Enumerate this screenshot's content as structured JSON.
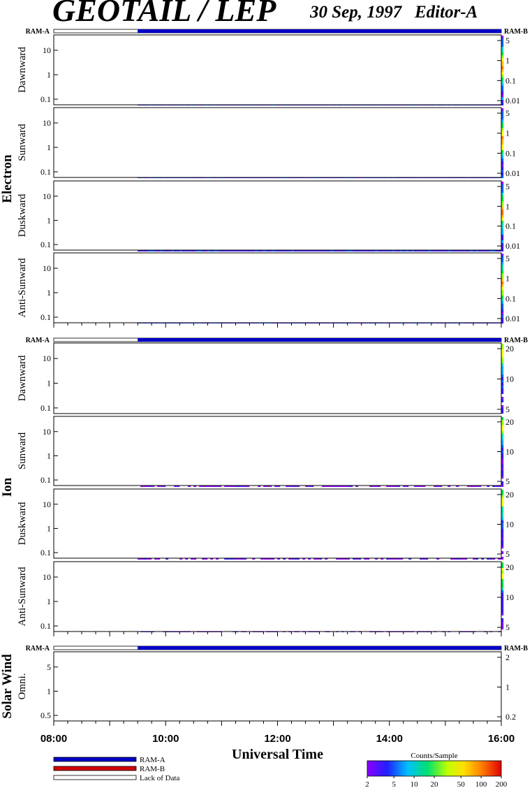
{
  "header": {
    "title": "GEOTAIL / LEP",
    "date": "30 Sep, 1997",
    "editor": "Editor-A"
  },
  "chart_data": {
    "type": "heatmap",
    "xlabel": "Universal Time",
    "x_ticks": [
      "08:00",
      "10:00",
      "12:00",
      "14:00",
      "16:00"
    ],
    "x_range_hours": [
      8,
      16
    ],
    "data_start_hours": 9.5,
    "ram_labels": {
      "left": "RAM-A",
      "right": "RAM-B"
    },
    "groups": [
      {
        "name": "Electron",
        "panels": [
          {
            "label": "Dawnward",
            "left_ticks": [
              "10",
              "1",
              "0.1"
            ],
            "right_ticks": [
              "5",
              "1",
              "0.1",
              "0.01"
            ]
          },
          {
            "label": "Sunward",
            "left_ticks": [
              "10",
              "1",
              "0.1"
            ],
            "right_ticks": [
              "5",
              "1",
              "0.1",
              "0.01"
            ]
          },
          {
            "label": "Duskward",
            "left_ticks": [
              "10",
              "1",
              "0.1"
            ],
            "right_ticks": [
              "5",
              "1",
              "0.1",
              "0.01"
            ]
          },
          {
            "label": "Anti-Sunward",
            "left_ticks": [
              "10",
              "1",
              "0.1"
            ],
            "right_ticks": [
              "5",
              "1",
              "0.1",
              "0.01"
            ]
          }
        ]
      },
      {
        "name": "Ion",
        "panels": [
          {
            "label": "Dawnward",
            "left_ticks": [
              "10",
              "1",
              "0.1"
            ],
            "right_ticks": [
              "20",
              "10",
              "5"
            ]
          },
          {
            "label": "Sunward",
            "left_ticks": [
              "10",
              "1",
              "0.1"
            ],
            "right_ticks": [
              "20",
              "10",
              "5"
            ]
          },
          {
            "label": "Duskward",
            "left_ticks": [
              "10",
              "1",
              "0.1"
            ],
            "right_ticks": [
              "20",
              "10",
              "5"
            ]
          },
          {
            "label": "Anti-Sunward",
            "left_ticks": [
              "10",
              "1",
              "0.1"
            ],
            "right_ticks": [
              "20",
              "10",
              "5"
            ]
          }
        ]
      },
      {
        "name": "Solar Wind",
        "panels": [
          {
            "label": "Omni.",
            "left_ticks": [
              "5",
              "1",
              "0.5"
            ],
            "right_ticks": [
              "2",
              "1",
              "0.2"
            ]
          }
        ]
      }
    ],
    "legend": {
      "items": [
        {
          "label": "RAM-A",
          "color": "#0000c8"
        },
        {
          "label": "RAM-B",
          "color": "#d00000"
        },
        {
          "label": "Lack of Data",
          "color": "#ffffff"
        }
      ]
    },
    "colorbar": {
      "title": "Counts/Sample",
      "ticks": [
        "2",
        "5",
        "10",
        "20",
        "50",
        "100",
        "200"
      ],
      "scale": "log",
      "range": [
        2,
        200
      ]
    }
  }
}
